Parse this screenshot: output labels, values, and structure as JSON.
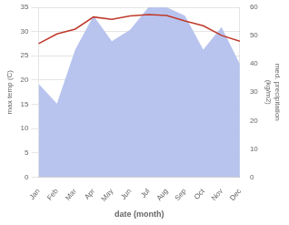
{
  "chart_data": {
    "type": "line",
    "categories": [
      "Jan",
      "Feb",
      "Mar",
      "Apr",
      "May",
      "Jun",
      "Jul",
      "Aug",
      "Sep",
      "Oct",
      "Nov",
      "Dec"
    ],
    "xlabel": "date (month)",
    "ylabel": "max temp (C)",
    "y2label": "med. precipitation\n(kg/m2)",
    "series": [
      {
        "type": "line",
        "color": "#c0392b",
        "values": [
          27.5,
          29.5,
          30.5,
          33.0,
          32.5,
          33.2,
          33.5,
          33.3,
          32.2,
          31.2,
          29.2,
          28.0
        ]
      },
      {
        "type": "area",
        "axis": "y2",
        "color": "#b8c4ee",
        "values": [
          33,
          26,
          45,
          57,
          48,
          52,
          60,
          60,
          57,
          45,
          53,
          40
        ]
      }
    ],
    "ylim": [
      0,
      35
    ],
    "yticks": [
      0,
      5,
      10,
      15,
      20,
      25,
      30,
      35
    ],
    "y2lim": [
      0,
      60
    ],
    "y2ticks": [
      0,
      10,
      20,
      30,
      40,
      50,
      60
    ],
    "grid": true
  }
}
